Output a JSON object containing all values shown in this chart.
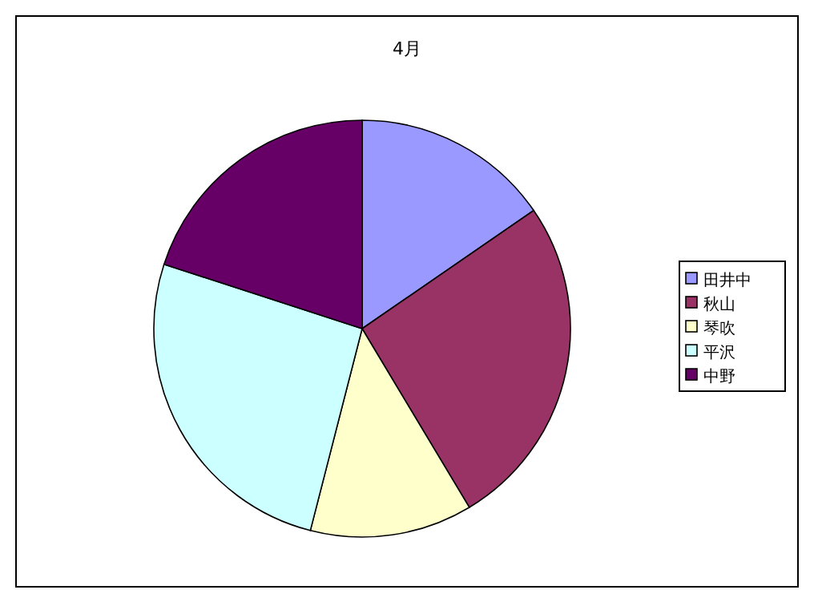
{
  "chart_data": {
    "type": "pie",
    "title": "4月",
    "categories": [
      "田井中",
      "秋山",
      "琴吹",
      "平沢",
      "中野"
    ],
    "values": [
      15.4,
      26,
      12.6,
      26,
      20
    ],
    "colors": [
      "#9999ff",
      "#993366",
      "#ffffcc",
      "#ccffff",
      "#660066"
    ],
    "legend": "right"
  }
}
